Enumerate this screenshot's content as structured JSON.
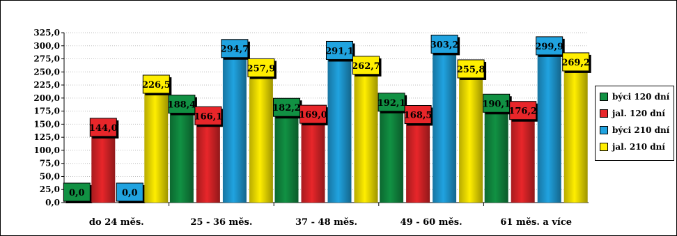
{
  "chart_data": {
    "type": "bar",
    "style": "3d-cylinder",
    "categories": [
      "do 24 měs.",
      "25 - 36 měs.",
      "37 - 48 měs.",
      "49 - 60 měs.",
      "61 měs. a více"
    ],
    "series": [
      {
        "name": "býci 120 dní",
        "color": "#119143",
        "values": [
          0.0,
          188.4,
          182.2,
          192.1,
          190.1
        ],
        "labels": [
          "0,0",
          "188,4",
          "182,2",
          "192,1",
          "190,1"
        ]
      },
      {
        "name": "jal. 120 dní",
        "color": "#e8262a",
        "values": [
          144.0,
          166.1,
          169.0,
          168.5,
          176.2
        ],
        "labels": [
          "144,0",
          "166,1",
          "169,0",
          "168,5",
          "176,2"
        ]
      },
      {
        "name": "býci 210 dní",
        "color": "#20a3e0",
        "values": [
          0.0,
          294.7,
          291.1,
          303.2,
          299.9
        ],
        "labels": [
          "0,0",
          "294,7",
          "291,1",
          "303,2",
          "299,9"
        ]
      },
      {
        "name": "jal. 210 dní",
        "color": "#ffee00",
        "values": [
          226.5,
          257.9,
          262.7,
          255.8,
          269.2
        ],
        "labels": [
          "226,5",
          "257,9",
          "262,7",
          "255,8",
          "269,2"
        ]
      }
    ],
    "ylim": [
      0,
      325
    ],
    "yticks": [
      "0,0",
      "25,0",
      "50,0",
      "75,0",
      "100,0",
      "125,0",
      "150,0",
      "175,0",
      "200,0",
      "225,0",
      "250,0",
      "275,0",
      "300,0",
      "325,0"
    ],
    "grid": true,
    "legend_position": "right"
  }
}
